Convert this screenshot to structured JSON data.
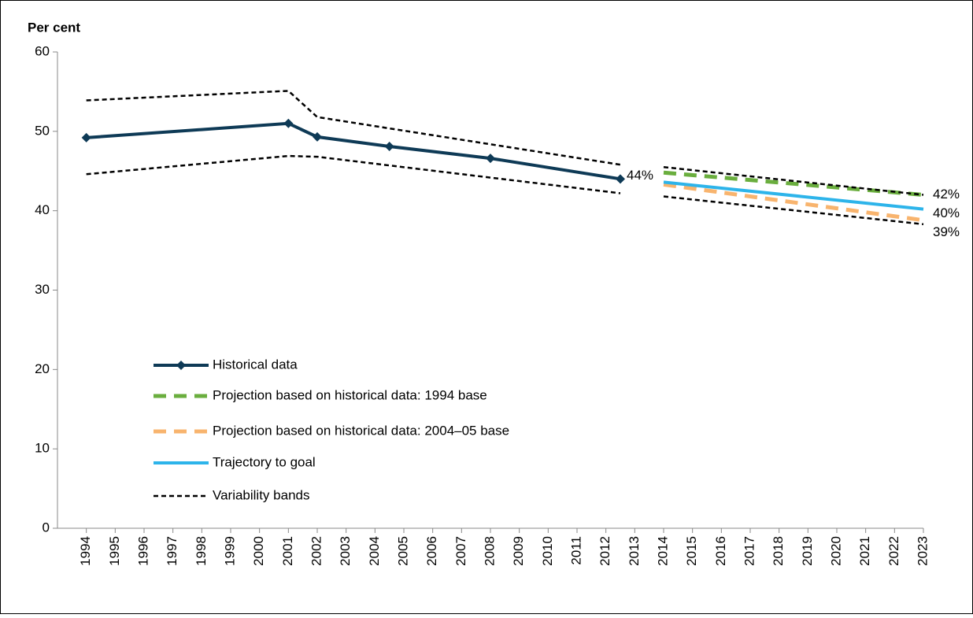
{
  "chart_data": {
    "type": "line",
    "y_label": "Per cent",
    "xlim": [
      1993,
      2023
    ],
    "xticks": [
      1994,
      1995,
      1996,
      1997,
      1998,
      1999,
      2000,
      2001,
      2002,
      2003,
      2004,
      2005,
      2006,
      2007,
      2008,
      2009,
      2010,
      2011,
      2012,
      2013,
      2014,
      2015,
      2016,
      2017,
      2018,
      2019,
      2020,
      2021,
      2022,
      2023
    ],
    "ylim": [
      0,
      60
    ],
    "yticks": [
      0,
      10,
      20,
      30,
      40,
      50,
      60
    ],
    "legend": "lower left",
    "series": [
      {
        "name": "Historical data",
        "color": "#0e3a56",
        "style": "solid",
        "marker": "diamond",
        "x": [
          1994,
          2001,
          2002,
          2004.5,
          2008,
          2012.5
        ],
        "values": [
          49.2,
          51.0,
          49.3,
          48.1,
          46.6,
          44.0
        ],
        "value_labels": [
          null,
          null,
          null,
          null,
          null,
          "44%"
        ]
      },
      {
        "name": "Projection based on historical data: 1994 base",
        "color": "#6aae3e",
        "style": "dashed",
        "x": [
          2014,
          2023
        ],
        "values": [
          44.8,
          42.0
        ],
        "value_labels": [
          null,
          "42%"
        ]
      },
      {
        "name": "Projection based on historical data: 2004–05 base",
        "color": "#f8b46e",
        "style": "dashed",
        "x": [
          2014,
          2023
        ],
        "values": [
          43.3,
          38.8
        ],
        "value_labels": [
          null,
          "39%"
        ]
      },
      {
        "name": "Trajectory to goal",
        "color": "#2db4ea",
        "style": "solid",
        "x": [
          2014,
          2023
        ],
        "values": [
          43.6,
          40.2
        ],
        "value_labels": [
          null,
          "40%"
        ]
      },
      {
        "name": "Variability bands",
        "color": "#000000",
        "style": "dotted",
        "x": [
          1994,
          2001,
          2002,
          2012.5,
          2013,
          2014,
          2023,
          2023,
          1994,
          2001,
          2002,
          2012.5,
          2013,
          2014,
          2023
        ],
        "values": [
          53.9,
          55.1,
          51.8,
          45.8,
          null,
          45.5,
          42.0,
          null,
          44.6,
          46.9,
          46.8,
          42.2,
          null,
          41.8,
          38.3
        ]
      }
    ]
  }
}
